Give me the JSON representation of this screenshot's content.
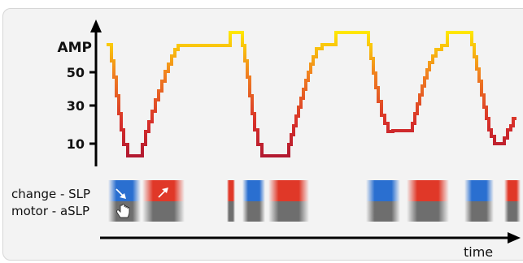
{
  "y_axis": {
    "label": "AMP",
    "ticks": [
      {
        "label": "50",
        "value": 50
      },
      {
        "label": "30",
        "value": 30
      },
      {
        "label": "10",
        "value": 10
      }
    ]
  },
  "x_axis": {
    "label": "time"
  },
  "rows": [
    {
      "label": "change - SLP"
    },
    {
      "label": "motor - aSLP"
    }
  ],
  "colors": {
    "amp_high": "#ffee00",
    "amp_mid": "#f08020",
    "amp_low": "#b01830",
    "change_down": "#2a6fd0",
    "change_up": "#e03828",
    "motor": "#707070",
    "axis": "#000000",
    "panel": "#f3f3f3"
  },
  "events": [
    {
      "change": "down",
      "motor": true,
      "glyphs": [
        "arrow-down-right-icon",
        "hand-pointer-icon"
      ]
    },
    {
      "change": "up",
      "motor": true,
      "glyphs": [
        "arrow-up-right-icon"
      ]
    },
    {
      "change": "up",
      "motor": true
    },
    {
      "change": "down",
      "motor": true
    },
    {
      "change": "up",
      "motor": true
    },
    {
      "change": "down",
      "motor": true
    },
    {
      "change": "up",
      "motor": true
    },
    {
      "change": "down",
      "motor": true
    },
    {
      "change": "up",
      "motor": true
    }
  ]
}
